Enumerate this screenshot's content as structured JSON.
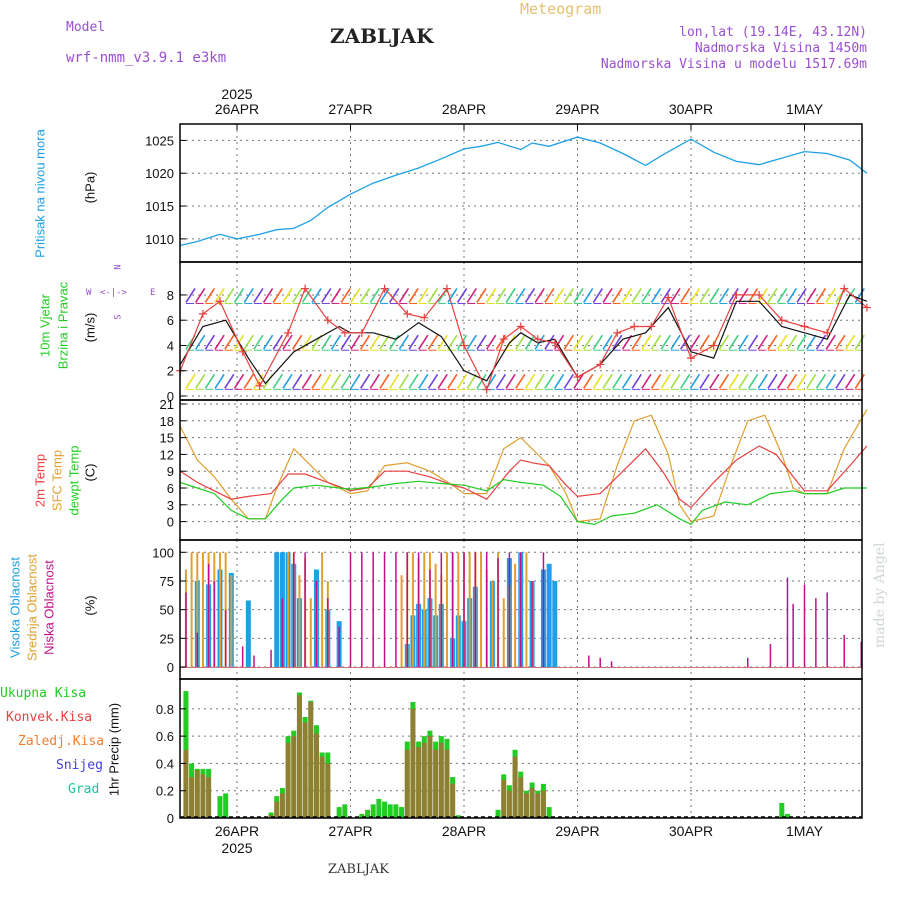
{
  "header": {
    "model_label": "Model",
    "model_name": "wrf-nmm_v3.9.1 e3km",
    "station": "ZABLJAK",
    "meteogram": "Meteogram",
    "location": "lon,lat (19.14E, 43.12N)",
    "elevation": "Nadmorska Visina 1450m",
    "model_elevation": "Nadmorska Visina u modelu 1517.69m"
  },
  "footer": {
    "station": "ZABLJAK",
    "credit": "made by Angel"
  },
  "colors": {
    "pressure": "#1ea0e6",
    "wind_speed": "#111111",
    "gust": "#e84040",
    "t2m": "#e84040",
    "sfc": "#e0a030",
    "dewpt": "#22cc22",
    "high_cloud": "#1ea0e6",
    "mid_cloud": "#e0a030",
    "low_cloud": "#c0108c",
    "total_precip": "#22cc22",
    "conv_precip": "#e84040",
    "frozen_precip": "#f08030",
    "snow": "#4040e0",
    "hail": "#20c0a0"
  },
  "chart_data": [
    {
      "type": "line",
      "panel": "pressure",
      "top_axis_year": "2025",
      "x_labels": [
        "26APR",
        "27APR",
        "28APR",
        "29APR",
        "30APR",
        "1MAY"
      ],
      "ylabel": "Pritisak na nivou mora",
      "unit": "(hPa)",
      "yticks": [
        1010,
        1015,
        1020,
        1025
      ],
      "ylim": [
        1008,
        1027.5
      ],
      "series": [
        {
          "name": "Pritisak na nivou mora",
          "x": [
            -0.5,
            -0.35,
            -0.15,
            0,
            0.2,
            0.35,
            0.5,
            0.65,
            0.8,
            1,
            1.2,
            1.4,
            1.6,
            1.8,
            2,
            2.15,
            2.3,
            2.5,
            2.6,
            2.75,
            3,
            3.2,
            3.4,
            3.6,
            3.75,
            4,
            4.2,
            4.4,
            4.6,
            4.8,
            5,
            5.2,
            5.4,
            5.55
          ],
          "values": [
            1009,
            1009.6,
            1010.7,
            1010,
            1010.7,
            1011.4,
            1011.6,
            1012.8,
            1014.8,
            1016.8,
            1018.5,
            1019.7,
            1020.8,
            1022.2,
            1023.7,
            1024.1,
            1024.7,
            1023.6,
            1024.6,
            1024.1,
            1025.5,
            1024.6,
            1023,
            1021.2,
            1022.8,
            1025.2,
            1023.2,
            1021.8,
            1021.3,
            1022.3,
            1023.3,
            1023,
            1022,
            1020
          ]
        }
      ]
    },
    {
      "type": "line",
      "panel": "wind",
      "ylabel": "10m Vjetar Brzina i Pravac",
      "unit": "(m/s)",
      "compass": {
        "n": "N",
        "w": "W",
        "e": "E",
        "s": "S"
      },
      "yticks": [
        0,
        2,
        4,
        6,
        8
      ],
      "ylim": [
        0,
        9.5
      ],
      "series": [
        {
          "name": "Brzina vjetra",
          "x": [
            -0.5,
            -0.3,
            -0.1,
            0.1,
            0.25,
            0.5,
            0.7,
            0.9,
            1,
            1.2,
            1.4,
            1.6,
            1.8,
            2,
            2.2,
            2.4,
            2.5,
            2.65,
            2.8,
            3,
            3.2,
            3.4,
            3.6,
            3.8,
            4,
            4.2,
            4.4,
            4.6,
            4.8,
            5,
            5.2,
            5.4,
            5.55
          ],
          "values": [
            2.5,
            5.5,
            6,
            3,
            1,
            3.5,
            4.5,
            5.5,
            5,
            5,
            4.5,
            5.8,
            4.7,
            2,
            1.2,
            4.2,
            5,
            4.2,
            4.5,
            1.5,
            2.5,
            4.5,
            5,
            7,
            3.5,
            3,
            7.5,
            7.5,
            5.5,
            5,
            4.5,
            8,
            7.5
          ]
        },
        {
          "name": "Udari vjetra",
          "x": [
            -0.5,
            -0.3,
            -0.15,
            0.05,
            0.2,
            0.45,
            0.6,
            0.8,
            0.95,
            1.1,
            1.3,
            1.5,
            1.65,
            1.85,
            2,
            2.2,
            2.35,
            2.5,
            2.65,
            2.8,
            3,
            3.2,
            3.35,
            3.5,
            3.65,
            3.8,
            4,
            4.2,
            4.4,
            4.6,
            4.8,
            5,
            5.2,
            5.35,
            5.55
          ],
          "values": [
            2,
            6.5,
            7.5,
            3.5,
            0.8,
            5,
            8.5,
            6,
            5,
            5,
            8.5,
            6.5,
            6.2,
            8.5,
            4,
            0.5,
            4.5,
            5.5,
            4.5,
            4.2,
            1.5,
            2.5,
            5,
            5.5,
            5.5,
            7.8,
            3,
            4,
            8,
            8,
            6,
            5.5,
            5,
            8.5,
            7
          ]
        }
      ]
    },
    {
      "type": "line",
      "panel": "temperature",
      "labels": [
        "2m Temp",
        "SFC Temp",
        "dewpt Temp"
      ],
      "unit": "(C)",
      "yticks": [
        0,
        3,
        6,
        9,
        12,
        15,
        18,
        21
      ],
      "ylim": [
        -1.5,
        21
      ],
      "series": [
        {
          "name": "2m Temp",
          "x": [
            -0.5,
            -0.35,
            -0.2,
            -0.05,
            0.1,
            0.3,
            0.45,
            0.6,
            0.8,
            1,
            1.15,
            1.3,
            1.5,
            1.7,
            1.9,
            2,
            2.2,
            2.4,
            2.5,
            2.6,
            2.75,
            2.9,
            3,
            3.2,
            3.4,
            3.6,
            3.75,
            3.9,
            4,
            4.2,
            4.4,
            4.6,
            4.75,
            4.9,
            5,
            5.2,
            5.4,
            5.55
          ],
          "values": [
            9,
            7,
            5.5,
            4,
            4.5,
            5,
            8.5,
            8.5,
            7,
            5.5,
            6,
            9,
            9,
            8,
            6.5,
            6,
            4,
            9,
            11,
            10.5,
            10,
            6.5,
            4.5,
            5,
            9,
            13,
            9,
            4,
            2.5,
            7,
            11,
            13.5,
            12,
            8,
            5.5,
            5.5,
            10,
            13.5
          ]
        },
        {
          "name": "SFC Temp",
          "x": [
            -0.5,
            -0.35,
            -0.2,
            -0.05,
            0.1,
            0.25,
            0.35,
            0.5,
            0.65,
            0.8,
            1,
            1.15,
            1.3,
            1.5,
            1.7,
            1.9,
            2,
            2.2,
            2.35,
            2.5,
            2.6,
            2.75,
            2.9,
            3,
            3.2,
            3.35,
            3.5,
            3.65,
            3.8,
            3.9,
            4,
            4.2,
            4.35,
            4.5,
            4.65,
            4.8,
            4.9,
            5,
            5.2,
            5.35,
            5.55
          ],
          "values": [
            17,
            11,
            8,
            4,
            0.5,
            0.5,
            6,
            13,
            10,
            7,
            5,
            5.5,
            10,
            10.5,
            9,
            6.5,
            5,
            5,
            13,
            15,
            13,
            10,
            5,
            0,
            0.5,
            10,
            18,
            19,
            12,
            3,
            0,
            1,
            10,
            18,
            19,
            12,
            6,
            5,
            5,
            13,
            20
          ]
        },
        {
          "name": "dewpt Temp",
          "x": [
            -0.5,
            -0.35,
            -0.2,
            -0.05,
            0.1,
            0.25,
            0.4,
            0.5,
            0.7,
            0.9,
            1,
            1.2,
            1.4,
            1.6,
            1.8,
            2,
            2.2,
            2.35,
            2.5,
            2.7,
            2.85,
            3,
            3.15,
            3.3,
            3.5,
            3.7,
            3.9,
            4,
            4.1,
            4.3,
            4.5,
            4.7,
            4.9,
            5,
            5.2,
            5.35,
            5.55
          ],
          "values": [
            7,
            6,
            5,
            2,
            0.5,
            0.5,
            4,
            6,
            6.5,
            6,
            5.8,
            6.2,
            6.8,
            7.2,
            6.8,
            6.5,
            5.5,
            7.5,
            7,
            6.5,
            4.5,
            0,
            -0.5,
            1,
            1.5,
            3,
            0.5,
            -0.5,
            2,
            3.5,
            3,
            5,
            5.5,
            5,
            5,
            6,
            6
          ]
        }
      ]
    },
    {
      "type": "bar",
      "panel": "clouds",
      "labels": [
        "Visoka Oblacnost",
        "Srednja Oblacnost",
        "Niska Oblacnost"
      ],
      "unit": "(%)",
      "yticks": [
        0,
        25,
        50,
        75,
        100
      ],
      "ylim": [
        0,
        102
      ],
      "series": [
        {
          "name": "Visoka Oblacnost",
          "x": [
            -0.35,
            -0.25,
            -0.15,
            -0.05,
            0.1,
            0.35,
            0.4,
            0.45,
            0.5,
            0.55,
            0.7,
            0.8,
            0.9,
            1.5,
            1.55,
            1.6,
            1.65,
            1.7,
            1.75,
            1.8,
            1.9,
            1.95,
            2,
            2.05,
            2.1,
            2.25,
            2.4,
            2.5,
            2.6,
            2.7,
            2.75,
            2.8
          ],
          "values": [
            75,
            72,
            85,
            82,
            58,
            100,
            100,
            100,
            90,
            60,
            85,
            50,
            40,
            20,
            45,
            55,
            50,
            60,
            45,
            55,
            25,
            45,
            40,
            60,
            70,
            75,
            95,
            100,
            75,
            85,
            90,
            75
          ]
        },
        {
          "name": "Srednja Oblacnost",
          "x": [
            -0.45,
            -0.4,
            -0.35,
            -0.3,
            -0.25,
            -0.2,
            -0.15,
            -0.1,
            -0.05,
            0.45,
            0.5,
            0.55,
            0.6,
            0.65,
            0.7,
            0.75,
            0.8,
            1.45,
            1.5,
            1.55,
            1.6,
            1.65,
            1.7,
            1.75,
            1.8,
            1.85,
            1.9,
            1.95,
            2,
            2.05,
            2.1,
            2.15,
            2.2,
            2.25,
            2.3,
            2.35,
            2.4,
            2.45,
            2.5,
            2.55,
            2.6
          ],
          "values": [
            85,
            100,
            100,
            100,
            100,
            100,
            100,
            100,
            80,
            100,
            100,
            80,
            95,
            60,
            70,
            100,
            75,
            80,
            100,
            100,
            95,
            100,
            100,
            90,
            80,
            100,
            100,
            100,
            100,
            100,
            100,
            100,
            85,
            75,
            100,
            60,
            70,
            90,
            100,
            100,
            75
          ]
        },
        {
          "name": "Niska Oblacnost",
          "x": [
            -0.45,
            -0.35,
            -0.25,
            -0.2,
            -0.1,
            0.05,
            0.15,
            0.3,
            0.4,
            0.5,
            0.6,
            0.7,
            0.8,
            0.9,
            1,
            1.1,
            1.2,
            1.3,
            1.4,
            1.5,
            1.6,
            1.7,
            1.8,
            1.9,
            2,
            2.1,
            2.2,
            2.3,
            2.4,
            2.5,
            2.6,
            2.7,
            3.1,
            3.2,
            3.3,
            4.5,
            4.7,
            4.85,
            4.9,
            5,
            5.1,
            5.2,
            5.35,
            5.5
          ],
          "values": [
            65,
            30,
            90,
            75,
            50,
            18,
            10,
            15,
            60,
            100,
            100,
            75,
            60,
            35,
            100,
            100,
            100,
            100,
            100,
            100,
            100,
            85,
            100,
            100,
            100,
            100,
            100,
            95,
            100,
            100,
            75,
            100,
            10,
            8,
            5,
            8,
            20,
            78,
            55,
            72,
            60,
            65,
            28,
            22
          ]
        }
      ]
    },
    {
      "type": "bar",
      "panel": "precip",
      "legend": [
        "Ukupna Kisa",
        "Konvek.Kisa",
        "Zaledj.Kisa",
        "Snijeg",
        "Grad"
      ],
      "ylabel": "1hr Precip (mm)",
      "yticks": [
        0,
        0.2,
        0.4,
        0.6,
        0.8
      ],
      "ylim": [
        0,
        0.96
      ],
      "bottom_axis_year": "2025",
      "series": [
        {
          "name": "Ukupna Kisa",
          "x": [
            -0.45,
            -0.4,
            -0.35,
            -0.3,
            -0.25,
            -0.15,
            -0.1,
            0.3,
            0.35,
            0.4,
            0.45,
            0.5,
            0.55,
            0.6,
            0.65,
            0.7,
            0.75,
            0.8,
            0.9,
            0.95,
            1.1,
            1.15,
            1.2,
            1.25,
            1.3,
            1.35,
            1.4,
            1.45,
            1.5,
            1.55,
            1.6,
            1.65,
            1.7,
            1.75,
            1.8,
            1.85,
            1.9,
            1.95,
            2.3,
            2.35,
            2.4,
            2.45,
            2.5,
            2.55,
            2.6,
            2.65,
            2.7,
            2.75,
            4.8,
            4.85
          ],
          "values": [
            0.93,
            0.4,
            0.36,
            0.36,
            0.36,
            0.16,
            0.18,
            0.04,
            0.16,
            0.22,
            0.6,
            0.64,
            0.92,
            0.74,
            0.86,
            0.68,
            0.48,
            0.48,
            0.08,
            0.1,
            0.03,
            0.06,
            0.1,
            0.14,
            0.12,
            0.1,
            0.1,
            0.08,
            0.56,
            0.85,
            0.56,
            0.6,
            0.64,
            0.56,
            0.6,
            0.58,
            0.3,
            0.02,
            0.06,
            0.32,
            0.24,
            0.5,
            0.34,
            0.2,
            0.26,
            0.2,
            0.25,
            0.08,
            0.11,
            0.03
          ]
        },
        {
          "name": "Konvek.Kisa",
          "x": [
            -0.45,
            -0.4,
            -0.35,
            -0.3,
            -0.25,
            0.3,
            0.35,
            0.4,
            0.45,
            0.5,
            0.55,
            0.6,
            0.65,
            0.7,
            0.75,
            0.8,
            1.5,
            1.55,
            1.6,
            1.65,
            1.7,
            1.75,
            1.8,
            1.85,
            1.9,
            2.35,
            2.4,
            2.45,
            2.5,
            2.55,
            2.6,
            2.65,
            2.7
          ],
          "values": [
            0.5,
            0.3,
            0.35,
            0.32,
            0.3,
            0.02,
            0.12,
            0.18,
            0.55,
            0.6,
            0.9,
            0.7,
            0.85,
            0.62,
            0.45,
            0.4,
            0.5,
            0.8,
            0.52,
            0.55,
            0.6,
            0.5,
            0.55,
            0.5,
            0.25,
            0.28,
            0.2,
            0.45,
            0.3,
            0.18,
            0.22,
            0.18,
            0.2
          ]
        }
      ]
    }
  ]
}
